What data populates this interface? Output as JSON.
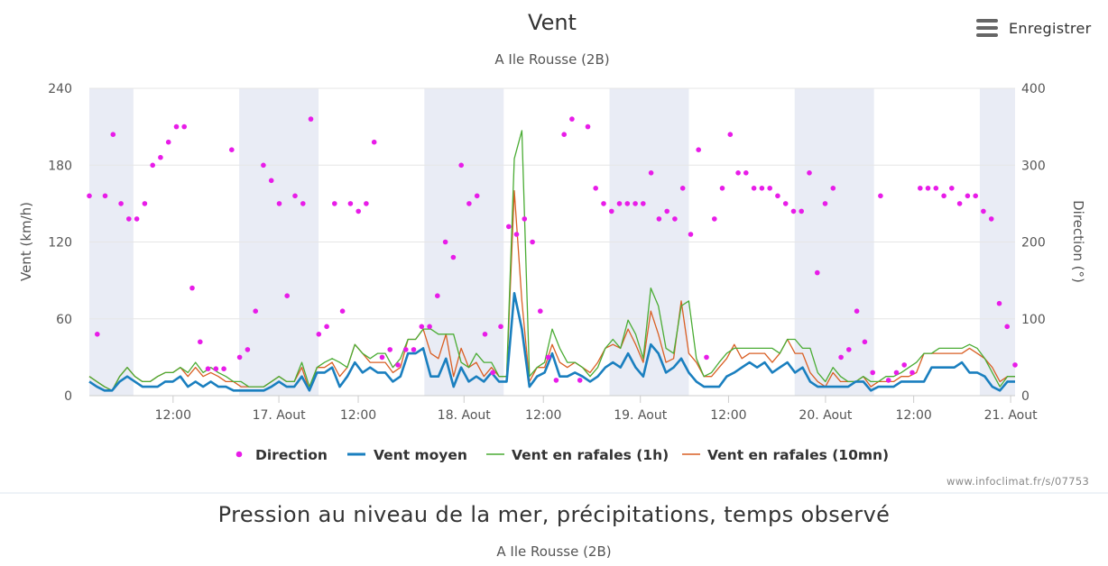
{
  "menu": {
    "icon": "hamburger-menu-icon",
    "label": "Enregistrer"
  },
  "credit": "www.infoclimat.fr/s/07753",
  "chart2": {
    "title": "Pression au niveau de la mer, précipitations, temps observé",
    "subtitle": "A Ile Rousse (2B)"
  },
  "chart_data": {
    "type": "line",
    "title": "Vent",
    "subtitle": "A Ile Rousse (2B)",
    "ylabel": "Vent (km/h)",
    "y2label": "Direction (°)",
    "ylim": [
      0,
      240
    ],
    "y2lim": [
      0,
      400
    ],
    "yticks": [
      0,
      60,
      120,
      180,
      240
    ],
    "y2ticks": [
      0,
      100,
      200,
      300,
      400
    ],
    "grid": true,
    "legend_position": "bottom-center",
    "x_range_hours": [
      0,
      105
    ],
    "x_ticks": [
      {
        "h": 9.5,
        "label": "12:00"
      },
      {
        "h": 21.5,
        "label": "17. Aout"
      },
      {
        "h": 30.5,
        "label": "12:00"
      },
      {
        "h": 42.5,
        "label": "18. Aout"
      },
      {
        "h": 51.5,
        "label": "12:00"
      },
      {
        "h": 62.5,
        "label": "19. Aout"
      },
      {
        "h": 72.5,
        "label": "12:00"
      },
      {
        "h": 83.5,
        "label": "20. Aout"
      },
      {
        "h": 93.5,
        "label": "12:00"
      },
      {
        "h": 104.5,
        "label": "21. Aout"
      }
    ],
    "night_bands": [
      [
        0,
        5
      ],
      [
        17,
        26
      ],
      [
        38,
        47
      ],
      [
        59,
        68
      ],
      [
        80,
        89
      ],
      [
        101,
        105
      ]
    ],
    "colors": {
      "direction": "#e81ce8",
      "moyen": "#1a7fbf",
      "rafales1h": "#4aac34",
      "rafales10": "#d95f24",
      "band": "#e9ecf5",
      "grid": "#e6e6e6"
    },
    "series": [
      {
        "name": "Vent moyen",
        "values": [
          11,
          7,
          4,
          4,
          11,
          15,
          11,
          7,
          7,
          7,
          11,
          11,
          15,
          7,
          11,
          7,
          11,
          7,
          7,
          4,
          4,
          4,
          4,
          4,
          7,
          11,
          7,
          7,
          15,
          4,
          18,
          18,
          22,
          7,
          15,
          26,
          18,
          22,
          18,
          18,
          11,
          15,
          33,
          33,
          37,
          15,
          15,
          29,
          7,
          22,
          11,
          15,
          11,
          18,
          11,
          11,
          80,
          52,
          7,
          15,
          18,
          33,
          15,
          15,
          18,
          15,
          11,
          15,
          22,
          26,
          22,
          33,
          22,
          15,
          40,
          33,
          18,
          22,
          29,
          18,
          11,
          7,
          7,
          7,
          15,
          18,
          22,
          26,
          22,
          26,
          18,
          22,
          26,
          18,
          22,
          11,
          7,
          7,
          7,
          7,
          7,
          11,
          11,
          4,
          7,
          7,
          7,
          11,
          11,
          11,
          11,
          22,
          22,
          22,
          22,
          26,
          18,
          18,
          15,
          7,
          4,
          11,
          11
        ]
      },
      {
        "name": "Vent en rafales (1h)",
        "values": [
          15,
          11,
          7,
          4,
          15,
          22,
          15,
          11,
          11,
          15,
          18,
          18,
          22,
          18,
          26,
          18,
          22,
          18,
          15,
          11,
          11,
          7,
          7,
          7,
          11,
          15,
          11,
          11,
          26,
          7,
          22,
          26,
          29,
          26,
          22,
          40,
          33,
          29,
          33,
          33,
          22,
          29,
          44,
          44,
          52,
          52,
          48,
          48,
          48,
          26,
          22,
          33,
          26,
          26,
          15,
          15,
          185,
          207,
          15,
          22,
          26,
          52,
          37,
          26,
          26,
          22,
          15,
          22,
          37,
          44,
          37,
          59,
          48,
          29,
          84,
          70,
          37,
          33,
          70,
          74,
          29,
          15,
          18,
          26,
          33,
          37,
          37,
          37,
          37,
          37,
          37,
          33,
          44,
          44,
          37,
          37,
          18,
          11,
          22,
          15,
          11,
          11,
          15,
          11,
          11,
          15,
          15,
          18,
          22,
          26,
          33,
          33,
          37,
          37,
          37,
          37,
          40,
          37,
          29,
          18,
          7,
          15,
          15
        ]
      },
      {
        "name": "Vent en rafales (10mn)",
        "values": [
          15,
          11,
          7,
          4,
          15,
          22,
          15,
          11,
          11,
          15,
          18,
          18,
          22,
          15,
          22,
          15,
          18,
          15,
          11,
          11,
          7,
          7,
          7,
          7,
          11,
          15,
          11,
          11,
          22,
          4,
          22,
          22,
          26,
          15,
          22,
          40,
          33,
          26,
          26,
          26,
          18,
          22,
          44,
          44,
          52,
          33,
          29,
          48,
          15,
          37,
          22,
          26,
          15,
          22,
          15,
          15,
          160,
          74,
          11,
          22,
          22,
          40,
          26,
          22,
          26,
          22,
          18,
          26,
          37,
          40,
          37,
          52,
          40,
          26,
          66,
          48,
          26,
          29,
          74,
          33,
          26,
          15,
          15,
          22,
          29,
          40,
          29,
          33,
          33,
          33,
          26,
          33,
          44,
          33,
          33,
          18,
          11,
          7,
          18,
          11,
          11,
          11,
          15,
          7,
          11,
          11,
          11,
          15,
          15,
          18,
          33,
          33,
          33,
          33,
          33,
          33,
          37,
          33,
          29,
          22,
          11,
          15,
          15
        ]
      },
      {
        "name": "Direction",
        "axis": "right",
        "values": [
          [
            0,
            260
          ],
          [
            1,
            80
          ],
          [
            2,
            260
          ],
          [
            3,
            340
          ],
          [
            4,
            250
          ],
          [
            5,
            230
          ],
          [
            6,
            230
          ],
          [
            7,
            250
          ],
          [
            8,
            300
          ],
          [
            9,
            310
          ],
          [
            10,
            330
          ],
          [
            11,
            350
          ],
          [
            12,
            350
          ],
          [
            13,
            140
          ],
          [
            14,
            70
          ],
          [
            15,
            35
          ],
          [
            16,
            35
          ],
          [
            17,
            35
          ],
          [
            18,
            320
          ],
          [
            19,
            50
          ],
          [
            20,
            60
          ],
          [
            21,
            110
          ],
          [
            22,
            300
          ],
          [
            23,
            280
          ],
          [
            24,
            250
          ],
          [
            25,
            130
          ],
          [
            26,
            260
          ],
          [
            27,
            250
          ],
          [
            28,
            360
          ],
          [
            29,
            80
          ],
          [
            30,
            90
          ],
          [
            31,
            250
          ],
          [
            32,
            110
          ],
          [
            33,
            250
          ],
          [
            34,
            240
          ],
          [
            35,
            250
          ],
          [
            36,
            330
          ],
          [
            37,
            50
          ],
          [
            38,
            60
          ],
          [
            39,
            40
          ],
          [
            40,
            60
          ],
          [
            41,
            60
          ],
          [
            42,
            90
          ],
          [
            43,
            90
          ],
          [
            44,
            130
          ],
          [
            45,
            200
          ],
          [
            46,
            180
          ],
          [
            47,
            300
          ],
          [
            48,
            250
          ],
          [
            49,
            260
          ],
          [
            50,
            80
          ],
          [
            51,
            30
          ],
          [
            52,
            90
          ],
          [
            53,
            220
          ],
          [
            54,
            210
          ],
          [
            55,
            230
          ],
          [
            56,
            200
          ],
          [
            57,
            110
          ],
          [
            58,
            50
          ],
          [
            59,
            20
          ],
          [
            60,
            340
          ],
          [
            61,
            360
          ],
          [
            62,
            20
          ],
          [
            63,
            350
          ],
          [
            64,
            270
          ],
          [
            65,
            250
          ],
          [
            66,
            240
          ],
          [
            67,
            250
          ],
          [
            68,
            250
          ],
          [
            69,
            250
          ],
          [
            70,
            250
          ],
          [
            71,
            290
          ],
          [
            72,
            230
          ],
          [
            73,
            240
          ],
          [
            74,
            230
          ],
          [
            75,
            270
          ],
          [
            76,
            210
          ],
          [
            77,
            320
          ],
          [
            78,
            50
          ],
          [
            79,
            230
          ],
          [
            80,
            270
          ],
          [
            81,
            340
          ],
          [
            82,
            290
          ],
          [
            83,
            290
          ],
          [
            84,
            270
          ],
          [
            85,
            270
          ],
          [
            86,
            270
          ],
          [
            87,
            260
          ],
          [
            88,
            250
          ],
          [
            89,
            240
          ],
          [
            90,
            240
          ],
          [
            91,
            290
          ],
          [
            92,
            160
          ],
          [
            93,
            250
          ],
          [
            94,
            270
          ],
          [
            95,
            50
          ],
          [
            96,
            60
          ],
          [
            97,
            110
          ],
          [
            98,
            70
          ],
          [
            99,
            30
          ],
          [
            100,
            260
          ],
          [
            101,
            20
          ],
          [
            102,
            30
          ],
          [
            103,
            40
          ],
          [
            104,
            30
          ],
          [
            105,
            270
          ],
          [
            106,
            270
          ],
          [
            107,
            270
          ],
          [
            108,
            260
          ],
          [
            109,
            270
          ],
          [
            110,
            250
          ],
          [
            111,
            260
          ],
          [
            112,
            260
          ],
          [
            113,
            240
          ],
          [
            114,
            230
          ],
          [
            115,
            120
          ],
          [
            116,
            90
          ],
          [
            117,
            40
          ]
        ]
      }
    ]
  }
}
